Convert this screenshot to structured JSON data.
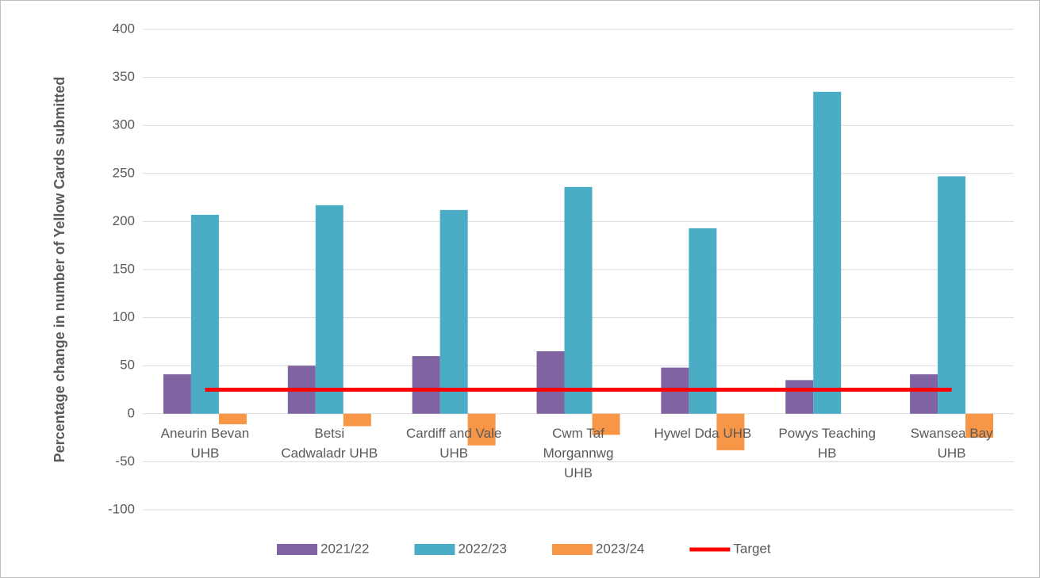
{
  "chart_data": {
    "type": "bar",
    "y_label": "Percentage change in number of Yellow Cards submitted",
    "categories": [
      "Aneurin Bevan\nUHB",
      "Betsi\nCadwaladr UHB",
      "Cardiff and Vale\nUHB",
      "Cwm Taf\nMorgannwg\nUHB",
      "Hywel Dda UHB",
      "Powys Teaching\nHB",
      "Swansea Bay\nUHB"
    ],
    "series": [
      {
        "name": "2021/22",
        "color": "#8064a2",
        "values": [
          41,
          50,
          60,
          65,
          48,
          35,
          41
        ]
      },
      {
        "name": "2022/23",
        "color": "#4bacc6",
        "values": [
          207,
          217,
          212,
          236,
          193,
          335,
          247
        ]
      },
      {
        "name": "2023/24",
        "color": "#f79646",
        "values": [
          -11,
          -13,
          -33,
          -22,
          -38,
          null,
          -25
        ]
      },
      {
        "name": "Target",
        "type": "line",
        "color": "#ff0000",
        "values": [
          25,
          25,
          25,
          25,
          25,
          25,
          25
        ]
      }
    ],
    "ylim": [
      -100,
      400
    ],
    "yticks": [
      -100,
      -50,
      0,
      50,
      100,
      150,
      200,
      250,
      300,
      350,
      400
    ],
    "grid": true,
    "legend": "bottom"
  }
}
